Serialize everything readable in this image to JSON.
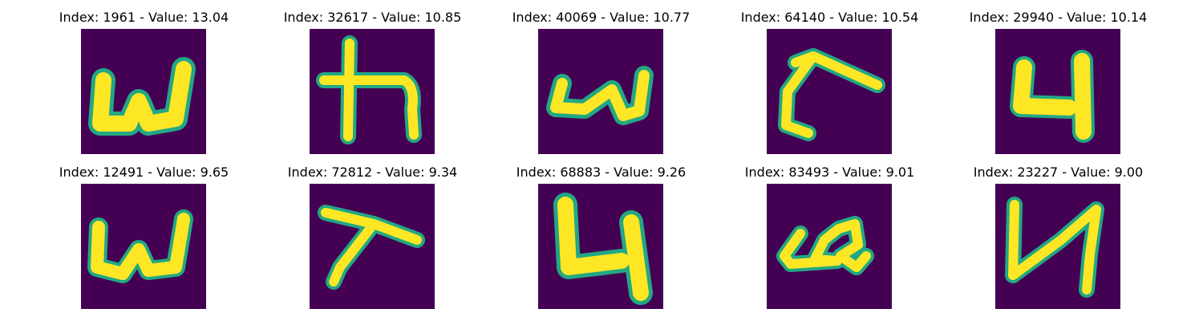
{
  "panels": [
    {
      "index": "1961",
      "value": "13.04",
      "title": "Index: 1961 - Value: 13.04",
      "glyph": "w-shape-icon"
    },
    {
      "index": "32617",
      "value": "10.85",
      "title": "Index: 32617 - Value: 10.85",
      "glyph": "ka-shape-icon"
    },
    {
      "index": "40069",
      "value": "10.77",
      "title": "Index: 40069 - Value: 10.77",
      "glyph": "u-shape-icon"
    },
    {
      "index": "64140",
      "value": "10.54",
      "title": "Index: 64140 - Value: 10.54",
      "glyph": "hook-shape-icon"
    },
    {
      "index": "29940",
      "value": "10.14",
      "title": "Index: 29940 - Value: 10.14",
      "glyph": "four-shape-icon"
    },
    {
      "index": "12491",
      "value": "9.65",
      "title": "Index: 12491 - Value: 9.65",
      "glyph": "w-shape-icon"
    },
    {
      "index": "72812",
      "value": "9.34",
      "title": "Index: 72812 - Value: 9.34",
      "glyph": "hook-shape-icon"
    },
    {
      "index": "68883",
      "value": "9.26",
      "title": "Index: 68883 - Value: 9.26",
      "glyph": "four-shape-icon"
    },
    {
      "index": "83493",
      "value": "9.01",
      "title": "Index: 83493 - Value: 9.01",
      "glyph": "loop-shape-icon"
    },
    {
      "index": "23227",
      "value": "9.00",
      "title": "Index: 23227 - Value: 9.00",
      "glyph": "four-shape-icon"
    }
  ],
  "colors": {
    "background": "#440154",
    "stroke": "#fde725",
    "edge": "#22a884"
  }
}
